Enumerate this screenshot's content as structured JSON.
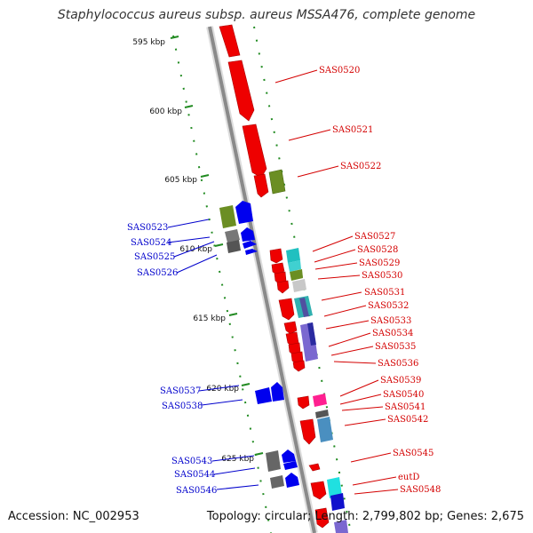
{
  "title": "Staphylococcus aureus subsp. aureus MSSA476, complete genome",
  "footer": {
    "accession": "Accession: NC_002953",
    "stats": "Topology: circular; Length: 2,799,802 bp; Genes: 2,675"
  },
  "ticks": [
    "595 kbp",
    "600 kbp",
    "605 kbp",
    "610 kbp",
    "615 kbp",
    "620 kbp",
    "625 kbp"
  ],
  "genes_right": [
    "SAS0520",
    "SAS0521",
    "SAS0522",
    "SAS0527",
    "SAS0528",
    "SAS0529",
    "SAS0530",
    "SAS0531",
    "SAS0532",
    "SAS0533",
    "SAS0534",
    "SAS0535",
    "SAS0536",
    "SAS0539",
    "SAS0540",
    "SAS0541",
    "SAS0542",
    "SAS0545",
    "eutD",
    "SAS0548"
  ],
  "genes_left": [
    "SAS0523",
    "SAS0524",
    "SAS0525",
    "SAS0526",
    "SAS0537",
    "SAS0538",
    "SAS0543",
    "SAS0544",
    "SAS0546"
  ],
  "colors": {
    "forward": "#ee0000",
    "reverse": "#0000ee",
    "backbone": "#888888",
    "ticks": "#228b22"
  }
}
